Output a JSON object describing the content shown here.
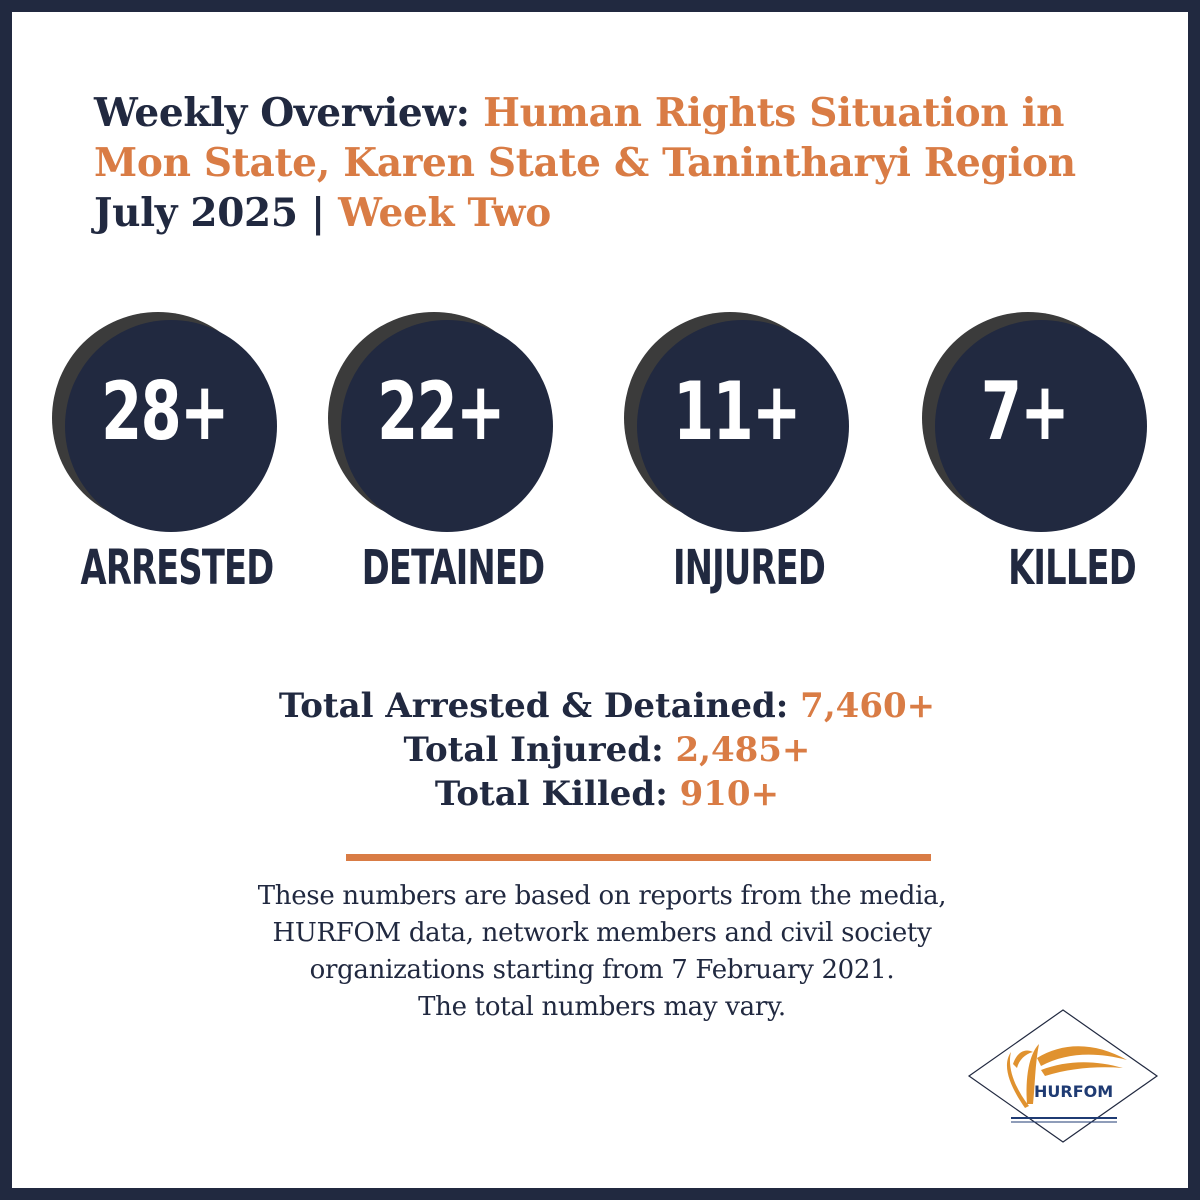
{
  "header": {
    "line1_prefix": "Weekly Overview: ",
    "line1_highlight": "Human Rights Situation in",
    "line2": "Mon State, Karen State & Tanintharyi Region",
    "line3_prefix": "July 2025 | ",
    "line3_highlight": "Week Two"
  },
  "stats": [
    {
      "value": "28+",
      "label": "ARRESTED"
    },
    {
      "value": "22+",
      "label": "DETAINED"
    },
    {
      "value": "11+",
      "label": "INJURED"
    },
    {
      "value": "7+",
      "label": "KILLED"
    }
  ],
  "totals": [
    {
      "label": "Total Arrested & Detained: ",
      "value": "7,460+"
    },
    {
      "label": "Total Injured: ",
      "value": "2,485+"
    },
    {
      "label": "Total Killed: ",
      "value": "910+"
    }
  ],
  "note": {
    "lines": [
      "These numbers are based on reports from the media,",
      "HURFOM data, network members and civil society",
      "organizations starting from 7 February 2021.",
      "The total numbers may vary."
    ]
  },
  "logo": {
    "text": "HURFOM",
    "icon": "hurfom-logo-icon"
  },
  "colors": {
    "navy": "#212940",
    "orange": "#d97c45",
    "circle_shadow": "#3b3b3b"
  }
}
